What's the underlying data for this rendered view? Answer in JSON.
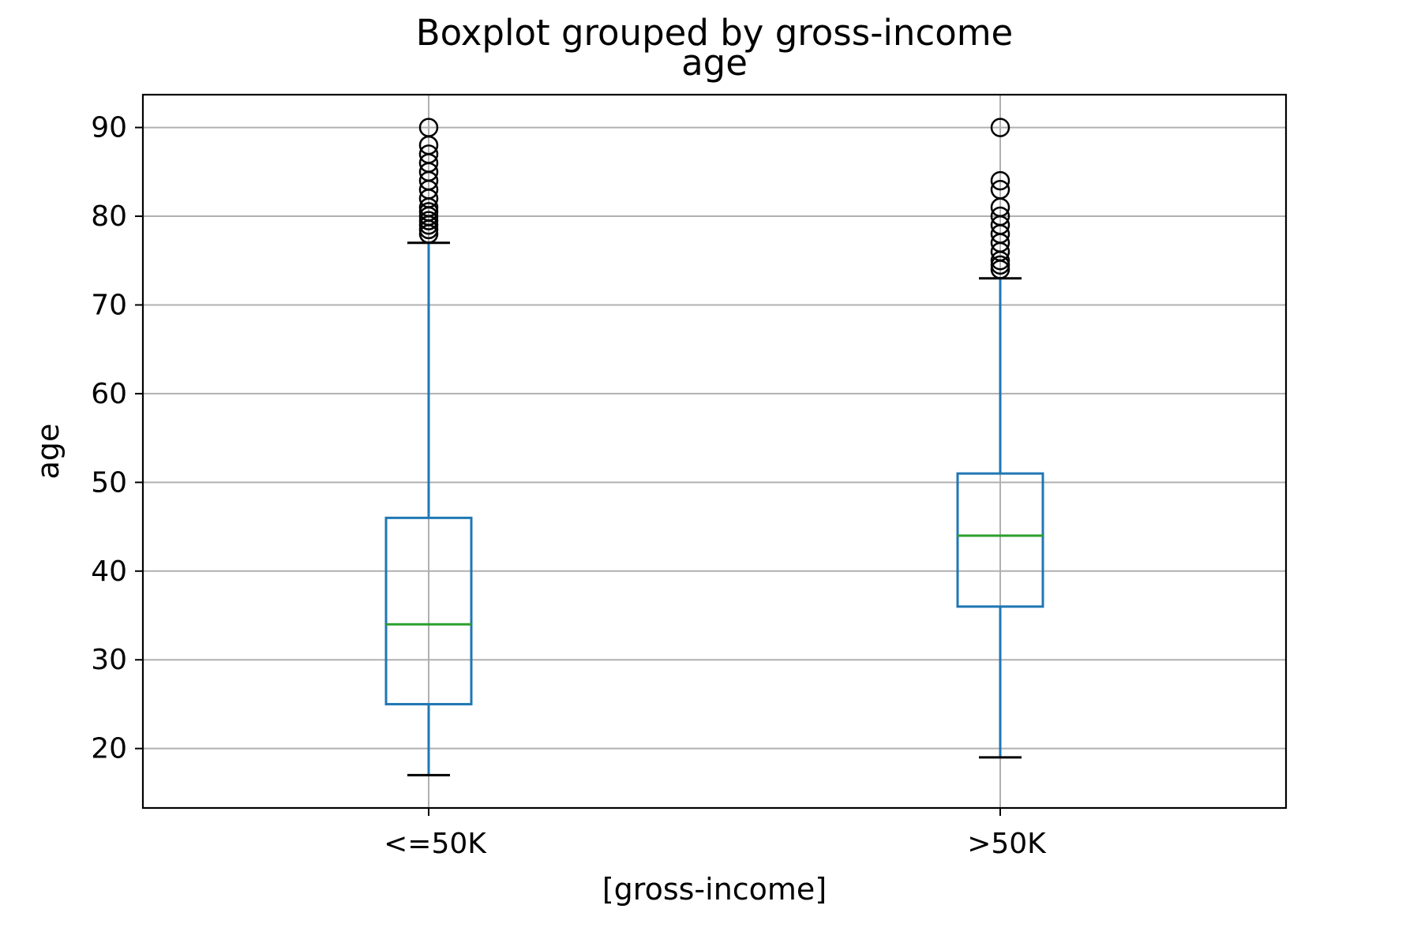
{
  "chart_data": {
    "type": "box",
    "suptitle": "Boxplot grouped by gross-income",
    "title": "age",
    "xlabel": "[gross-income]",
    "ylabel": "age",
    "ylim": [
      13.3,
      93.7
    ],
    "yticks": [
      20,
      30,
      40,
      50,
      60,
      70,
      80,
      90
    ],
    "grid": true,
    "categories": [
      "<=50K",
      ">50K"
    ],
    "boxes": [
      {
        "category": "<=50K",
        "whisker_low": 17,
        "q1": 25,
        "median": 34,
        "q3": 46,
        "whisker_high": 77,
        "outliers": [
          78,
          78.5,
          79,
          79.5,
          80,
          80.5,
          81,
          82,
          83,
          84,
          85,
          86,
          87,
          88,
          90
        ]
      },
      {
        "category": ">50K",
        "whisker_low": 19,
        "q1": 36,
        "median": 44,
        "q3": 51,
        "whisker_high": 73,
        "outliers": [
          74,
          74.5,
          75,
          76,
          77,
          78,
          79,
          80,
          81,
          83,
          84,
          90
        ]
      }
    ],
    "colors": {
      "box": "#1f77b4",
      "median": "#2ca02c",
      "whisker_cap": "#000000",
      "outlier": "#000000",
      "grid": "#b0b0b0"
    }
  }
}
